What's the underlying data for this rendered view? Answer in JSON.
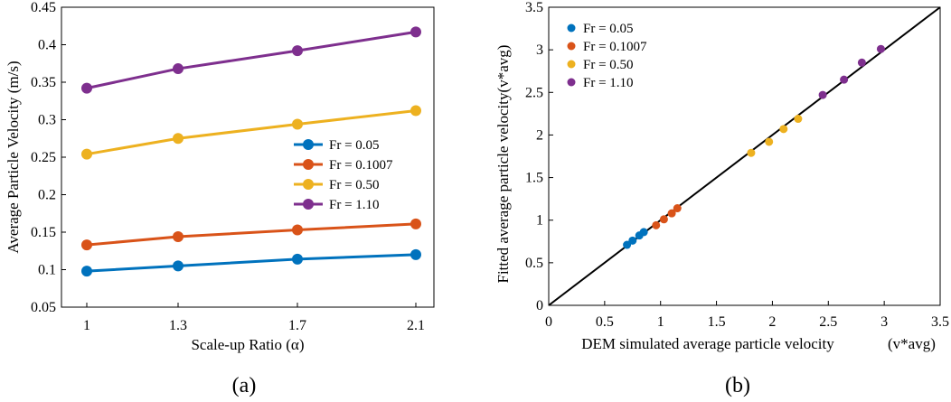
{
  "colors": {
    "blue": "#0072BD",
    "orange": "#D95319",
    "yellow": "#EDB120",
    "purple": "#7E2F8E",
    "axis": "#000000",
    "diagonal": "#000000"
  },
  "chart_data": [
    {
      "type": "line",
      "caption": "(a)",
      "xlabel": "Scale-up Ratio (α)",
      "ylabel": "Average Particle Velocity (m/s)",
      "categories": [
        "1",
        "1.3",
        "1.7",
        "2.1"
      ],
      "ylim": [
        0.05,
        0.45
      ],
      "yticks": [
        "0.05",
        "0.1",
        "0.15",
        "0.2",
        "0.25",
        "0.3",
        "0.35",
        "0.4",
        "0.45"
      ],
      "legend_position": "right-center",
      "series": [
        {
          "name": "Fr = 0.05",
          "color": "blue",
          "values": [
            0.098,
            0.105,
            0.114,
            0.12
          ]
        },
        {
          "name": "Fr = 0.1007",
          "color": "orange",
          "values": [
            0.133,
            0.144,
            0.153,
            0.161
          ]
        },
        {
          "name": "Fr = 0.50",
          "color": "yellow",
          "values": [
            0.254,
            0.275,
            0.294,
            0.312
          ]
        },
        {
          "name": "Fr = 1.10",
          "color": "purple",
          "values": [
            0.342,
            0.368,
            0.392,
            0.417
          ]
        }
      ]
    },
    {
      "type": "scatter",
      "caption": "(b)",
      "xlabel": "DEM simulated average particle velocity",
      "ylabel": "Fitted average particle velocity",
      "xlabel_symbol": "(v*avg)",
      "ylabel_symbol": "(v*avg)",
      "xlim": [
        0,
        3.5
      ],
      "ylim": [
        0,
        3.5
      ],
      "xticks": [
        "0",
        "0.5",
        "1",
        "1.5",
        "2",
        "2.5",
        "3",
        "3.5"
      ],
      "yticks": [
        "0",
        "0.5",
        "1",
        "1.5",
        "2",
        "2.5",
        "3",
        "3.5"
      ],
      "reference_line": "y = x",
      "legend_position": "top-left",
      "series": [
        {
          "name": "Fr = 0.05",
          "color": "blue",
          "x": [
            0.7,
            0.75,
            0.81,
            0.85
          ],
          "y": [
            0.71,
            0.76,
            0.82,
            0.86
          ]
        },
        {
          "name": "Fr = 0.1007",
          "color": "orange",
          "x": [
            0.96,
            1.03,
            1.1,
            1.15
          ],
          "y": [
            0.94,
            1.01,
            1.08,
            1.14
          ]
        },
        {
          "name": "Fr = 0.50",
          "color": "yellow",
          "x": [
            1.81,
            1.97,
            2.1,
            2.23
          ],
          "y": [
            1.79,
            1.92,
            2.07,
            2.19
          ]
        },
        {
          "name": "Fr = 1.10",
          "color": "purple",
          "x": [
            2.45,
            2.64,
            2.8,
            2.97
          ],
          "y": [
            2.47,
            2.65,
            2.85,
            3.01
          ]
        }
      ]
    }
  ]
}
